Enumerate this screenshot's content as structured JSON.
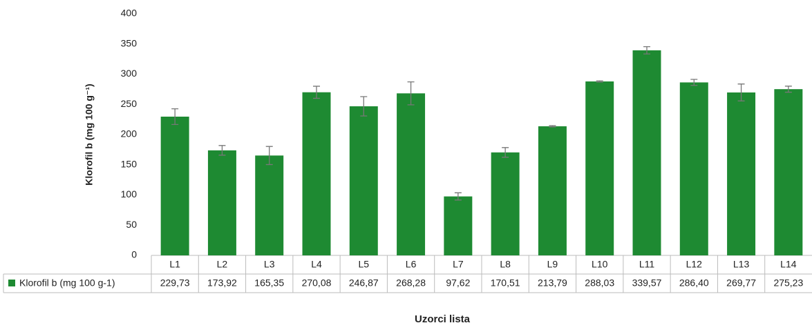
{
  "chart_data": {
    "type": "bar",
    "y_label": "Klorofil b (mg 100 g⁻¹)",
    "x_label": "Uzorci lista",
    "categories": [
      "L1",
      "L2",
      "L3",
      "L4",
      "L5",
      "L6",
      "L7",
      "L8",
      "L9",
      "L10",
      "L11",
      "L12",
      "L13",
      "L14"
    ],
    "series": [
      {
        "name": "Klorofil b (mg 100 g-1)",
        "color": "#1e8a32",
        "values": [
          229.73,
          173.92,
          165.35,
          270.08,
          246.87,
          268.28,
          97.62,
          170.51,
          213.79,
          288.03,
          339.57,
          286.4,
          269.77,
          275.23
        ],
        "value_labels": [
          "229,73",
          "173,92",
          "165,35",
          "270,08",
          "246,87",
          "268,28",
          "97,62",
          "170,51",
          "213,79",
          "288,03",
          "339,57",
          "286,40",
          "269,77",
          "275,23"
        ],
        "errors": [
          13,
          8,
          15,
          10,
          16,
          19,
          6,
          8,
          1,
          1,
          6,
          5,
          14,
          5
        ]
      }
    ],
    "ylim": [
      0,
      400
    ],
    "yticks": [
      0,
      50,
      100,
      150,
      200,
      250,
      300,
      350,
      400
    ]
  }
}
